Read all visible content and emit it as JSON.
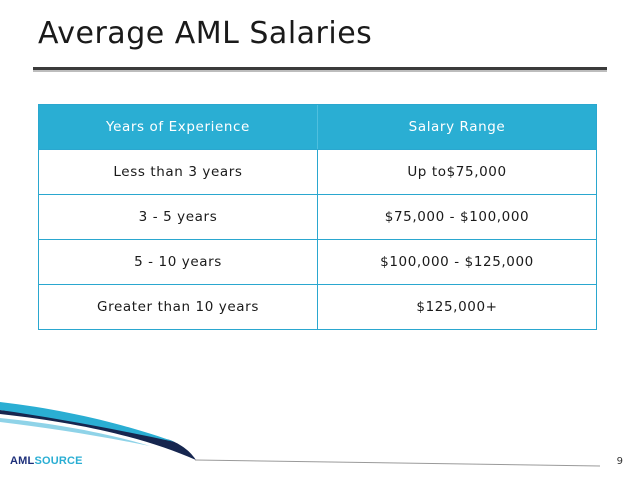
{
  "slide": {
    "title": "Average AML Salaries",
    "page_number": "9"
  },
  "table": {
    "headers": [
      "Years of Experience",
      "Salary Range"
    ],
    "rows": [
      [
        "Less than 3 years",
        "Up to$75,000"
      ],
      [
        "3 - 5 years",
        "$75,000 - $100,000"
      ],
      [
        "5 - 10 years",
        "$100,000 - $125,000"
      ],
      [
        "Greater than 10 years",
        "$125,000+"
      ]
    ]
  },
  "logo": {
    "part1": "AML",
    "part2": "SOURCE"
  },
  "colors": {
    "header_bg": "#2aaed3",
    "border": "#2aa7cf",
    "logo_dark": "#1d2f7a",
    "logo_light": "#2aaed3"
  }
}
